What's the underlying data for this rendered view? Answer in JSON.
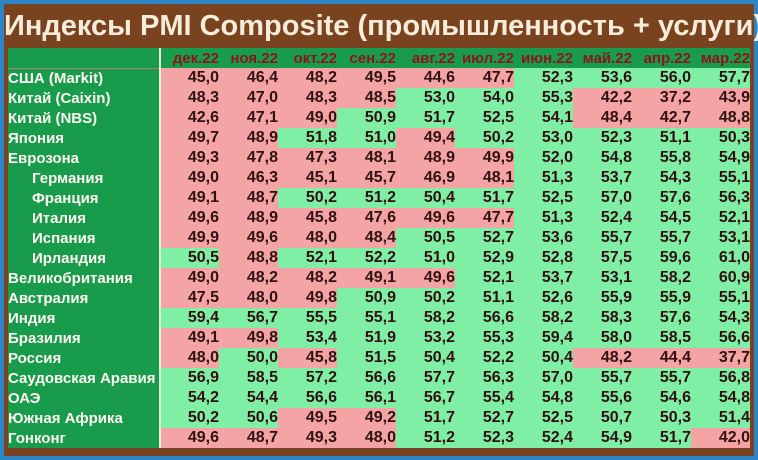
{
  "title": "Индексы PMI Composite (промышленность + услуги)",
  "colors": {
    "border_blue": "#2b85c8",
    "frame_brown": "#7a431f",
    "header_green": "#189c4c",
    "cell_above_threshold": "#80efa6",
    "cell_below_threshold": "#f4a4a4",
    "month_text": "#8e1515",
    "label_text": "#fff8f2",
    "value_text": "#301010",
    "title_text": "#f6ecd9"
  },
  "chart_data": {
    "type": "table",
    "title": "Индексы PMI Composite (промышленность + услуги)",
    "columns": [
      "дек.22",
      "ноя.22",
      "окт.22",
      "сен.22",
      "авг.22",
      "июл.22",
      "июн.22",
      "май.22",
      "апр.22",
      "мар.22"
    ],
    "threshold": 50,
    "color_rule": "value >= 50 green, value < 50 pink",
    "decimal_separator": ",",
    "rows": [
      {
        "name": "США (Markit)",
        "indent": false,
        "values": [
          45.0,
          46.4,
          48.2,
          49.5,
          44.6,
          47.7,
          52.3,
          53.6,
          56.0,
          57.7
        ]
      },
      {
        "name": "Китай (Caixin)",
        "indent": false,
        "values": [
          48.3,
          47.0,
          48.3,
          48.5,
          53.0,
          54.0,
          55.3,
          42.2,
          37.2,
          43.9
        ]
      },
      {
        "name": "Китай (NBS)",
        "indent": false,
        "values": [
          42.6,
          47.1,
          49.0,
          50.9,
          51.7,
          52.5,
          54.1,
          48.4,
          42.7,
          48.8
        ]
      },
      {
        "name": "Япония",
        "indent": false,
        "values": [
          49.7,
          48.9,
          51.8,
          51.0,
          49.4,
          50.2,
          53.0,
          52.3,
          51.1,
          50.3
        ]
      },
      {
        "name": "Еврозона",
        "indent": false,
        "values": [
          49.3,
          47.8,
          47.3,
          48.1,
          48.9,
          49.9,
          52.0,
          54.8,
          55.8,
          54.9
        ]
      },
      {
        "name": "Германия",
        "indent": true,
        "values": [
          49.0,
          46.3,
          45.1,
          45.7,
          46.9,
          48.1,
          51.3,
          53.7,
          54.3,
          55.1
        ]
      },
      {
        "name": "Франция",
        "indent": true,
        "values": [
          49.1,
          48.7,
          50.2,
          51.2,
          50.4,
          51.7,
          52.5,
          57.0,
          57.6,
          56.3
        ]
      },
      {
        "name": "Италия",
        "indent": true,
        "values": [
          49.6,
          48.9,
          45.8,
          47.6,
          49.6,
          47.7,
          51.3,
          52.4,
          54.5,
          52.1
        ]
      },
      {
        "name": "Испания",
        "indent": true,
        "values": [
          49.9,
          49.6,
          48.0,
          48.4,
          50.5,
          52.7,
          53.6,
          55.7,
          55.7,
          53.1
        ]
      },
      {
        "name": "Ирландия",
        "indent": true,
        "values": [
          50.5,
          48.8,
          52.1,
          52.2,
          51.0,
          52.9,
          52.8,
          57.5,
          59.6,
          61.0
        ]
      },
      {
        "name": "Великобритания",
        "indent": false,
        "values": [
          49.0,
          48.2,
          48.2,
          49.1,
          49.6,
          52.1,
          53.7,
          53.1,
          58.2,
          60.9
        ]
      },
      {
        "name": "Австралия",
        "indent": false,
        "values": [
          47.5,
          48.0,
          49.8,
          50.9,
          50.2,
          51.1,
          52.6,
          55.9,
          55.9,
          55.1
        ]
      },
      {
        "name": "Индия",
        "indent": false,
        "values": [
          59.4,
          56.7,
          55.5,
          55.1,
          58.2,
          56.6,
          58.2,
          58.3,
          57.6,
          54.3
        ]
      },
      {
        "name": "Бразилия",
        "indent": false,
        "values": [
          49.1,
          49.8,
          53.4,
          51.9,
          53.2,
          55.3,
          59.4,
          58.0,
          58.5,
          56.6
        ]
      },
      {
        "name": "Россия",
        "indent": false,
        "values": [
          48.0,
          50.0,
          45.8,
          51.5,
          50.4,
          52.2,
          50.4,
          48.2,
          44.4,
          37.7
        ]
      },
      {
        "name": "Саудовская Аравия",
        "indent": false,
        "values": [
          56.9,
          58.5,
          57.2,
          56.6,
          57.7,
          56.3,
          57.0,
          55.7,
          55.7,
          56.8
        ]
      },
      {
        "name": "ОАЭ",
        "indent": false,
        "values": [
          54.2,
          54.4,
          56.6,
          56.1,
          56.7,
          55.4,
          54.8,
          55.6,
          54.6,
          54.8
        ]
      },
      {
        "name": "Южная Африка",
        "indent": false,
        "values": [
          50.2,
          50.6,
          49.5,
          49.2,
          51.7,
          52.7,
          52.5,
          50.7,
          50.3,
          51.4
        ]
      },
      {
        "name": "Гонконг",
        "indent": false,
        "values": [
          49.6,
          48.7,
          49.3,
          48.0,
          51.2,
          52.3,
          52.4,
          54.9,
          51.7,
          42.0
        ]
      }
    ]
  }
}
